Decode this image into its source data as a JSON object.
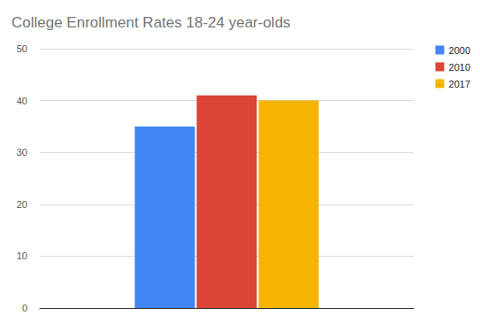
{
  "chart_data": {
    "type": "bar",
    "title": "College Enrollment Rates 18-24 year-olds",
    "categories": [
      null
    ],
    "series": [
      {
        "name": "2000",
        "color": "#4285f4",
        "values": [
          35
        ]
      },
      {
        "name": "2010",
        "color": "#db4437",
        "values": [
          41
        ]
      },
      {
        "name": "2017",
        "color": "#f4b400",
        "values": [
          40
        ]
      }
    ],
    "ylim": [
      0,
      50
    ],
    "yticks": [
      0,
      10,
      20,
      30,
      40,
      50
    ],
    "grid": true,
    "legend": "right"
  }
}
